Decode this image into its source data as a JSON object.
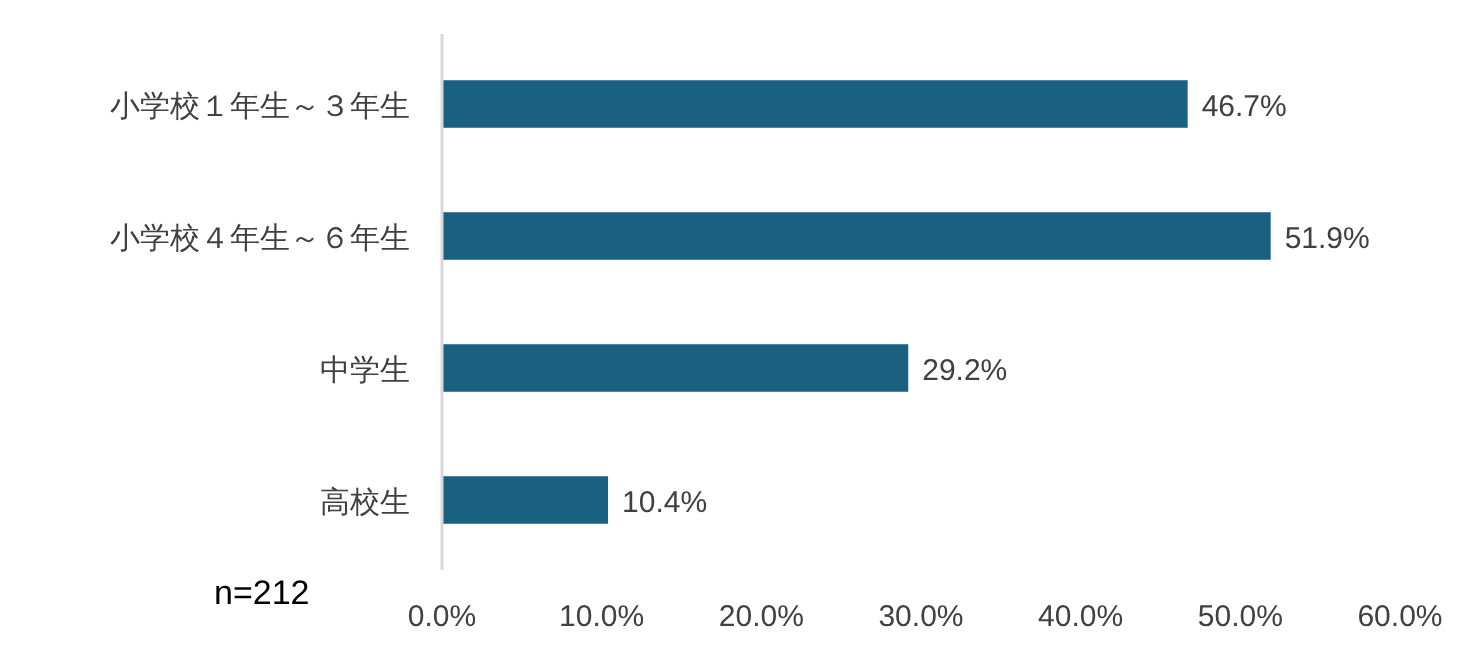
{
  "chart_data": {
    "type": "bar",
    "orientation": "horizontal",
    "categories": [
      "小学校１年生～３年生",
      "小学校４年生～６年生",
      "中学生",
      "高校生"
    ],
    "values": [
      46.7,
      51.9,
      29.2,
      10.4
    ],
    "value_labels": [
      "46.7%",
      "51.9%",
      "29.2%",
      "10.4%"
    ],
    "color": "#1a6080",
    "xlim": [
      0,
      60
    ],
    "xticks": [
      {
        "value": 0,
        "label": "0.0%"
      },
      {
        "value": 10,
        "label": "10.0%"
      },
      {
        "value": 20,
        "label": "20.0%"
      },
      {
        "value": 30,
        "label": "30.0%"
      },
      {
        "value": 40,
        "label": "40.0%"
      },
      {
        "value": 50,
        "label": "50.0%"
      },
      {
        "value": 60,
        "label": "60.0%"
      }
    ],
    "annotations": [
      "n=212"
    ],
    "grid": false
  }
}
